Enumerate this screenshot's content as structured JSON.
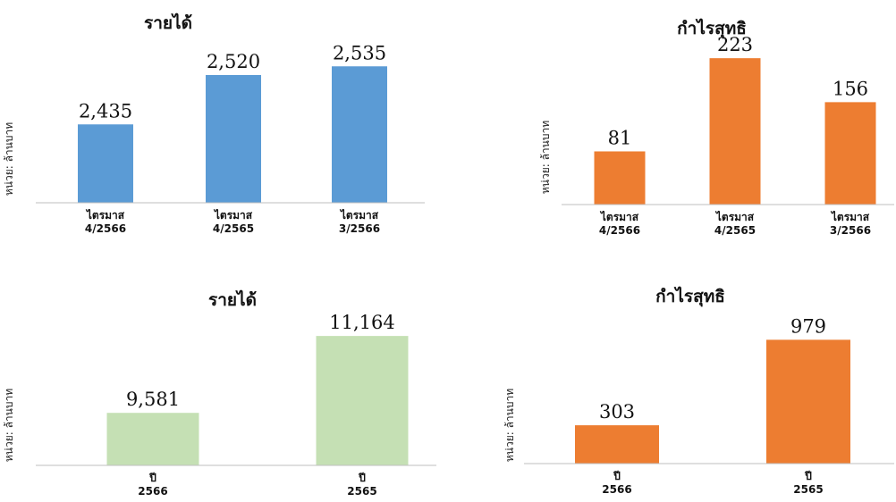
{
  "chart_data": [
    {
      "type": "bar",
      "title": "รายได้",
      "ylabel": "หน่วย: ล้านบาท",
      "categories": [
        [
          "ไตรมาส",
          "4/2566"
        ],
        [
          "ไตรมาส",
          "4/2565"
        ],
        [
          "ไตรมาส",
          "3/2566"
        ]
      ],
      "values": [
        2435,
        2520,
        2535
      ],
      "value_labels": [
        "2,435",
        "2,520",
        "2,535"
      ],
      "color": "#5b9bd5",
      "ylim": [
        2300,
        2560
      ]
    },
    {
      "type": "bar",
      "title": "กำไรสุทธิ",
      "ylabel": "หน่วย: ล้านบาท",
      "categories": [
        [
          "ไตรมาส",
          "4/2566"
        ],
        [
          "ไตรมาส",
          "4/2565"
        ],
        [
          "ไตรมาส",
          "3/2566"
        ]
      ],
      "values": [
        81,
        223,
        156
      ],
      "value_labels": [
        "81",
        "223",
        "156"
      ],
      "color": "#ed7d31",
      "ylim": [
        0,
        230
      ]
    },
    {
      "type": "bar",
      "title": "รายได้",
      "ylabel": "หน่วย: ล้านบาท",
      "categories": [
        [
          "ปี",
          "2566"
        ],
        [
          "ปี",
          "2565"
        ]
      ],
      "values": [
        9581,
        11164
      ],
      "value_labels": [
        "9,581",
        "11,164"
      ],
      "color": "#c5e0b4",
      "ylim": [
        8500,
        11350
      ]
    },
    {
      "type": "bar",
      "title": "กำไรสุทธิ",
      "ylabel": "หน่วย: ล้านบาท",
      "categories": [
        [
          "ปี",
          "2566"
        ],
        [
          "ปี",
          "2565"
        ]
      ],
      "values": [
        303,
        979
      ],
      "value_labels": [
        "303",
        "979"
      ],
      "color": "#ed7d31",
      "ylim": [
        0,
        1010
      ]
    }
  ]
}
